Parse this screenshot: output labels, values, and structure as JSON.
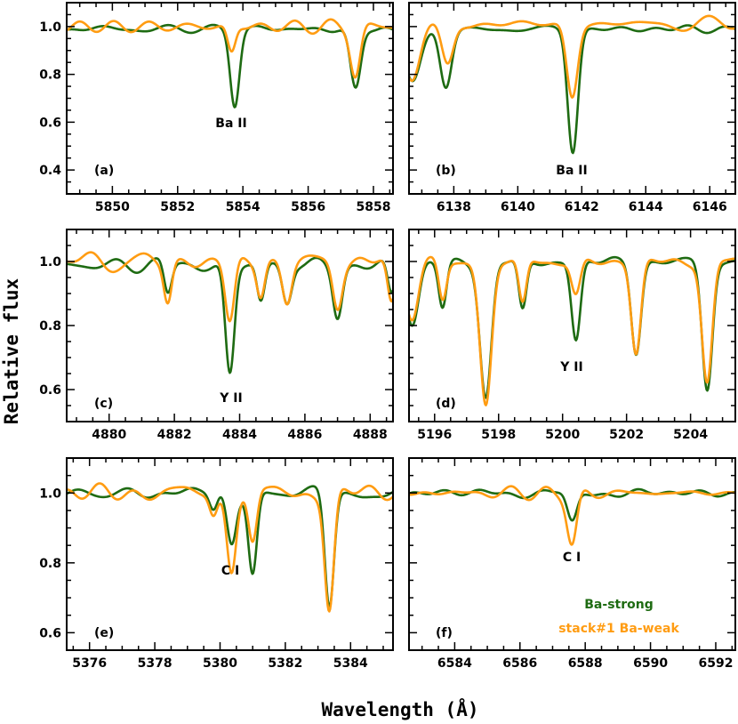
{
  "figure": {
    "ylabel": "Relative flux",
    "xlabel": "Wavelength (Å)",
    "legend": [
      {
        "label": "Ba-strong",
        "color": "#1e6b12"
      },
      {
        "label": "stack#1 Ba-weak",
        "color": "#ff9c12"
      }
    ]
  },
  "chart_data": [
    {
      "type": "line",
      "panel": "(a)",
      "line_label": "Ba II",
      "xlim": [
        5848.6,
        5858.6
      ],
      "ylim": [
        0.3,
        1.1
      ],
      "xticks": [
        "5850",
        "5852",
        "5854",
        "5856",
        "5858"
      ],
      "xtick_values": [
        5850,
        5852,
        5854,
        5856,
        5858
      ],
      "yticks": [
        "0.4",
        "0.6",
        "0.8",
        "1.0"
      ],
      "ytick_values": [
        0.4,
        0.6,
        0.8,
        1.0
      ],
      "series": [
        {
          "name": "Ba-strong",
          "color": "#1e6b12",
          "baseline": 0.99,
          "wiggle": 0.02,
          "seed": 11,
          "lines": [
            {
              "center": 5853.75,
              "depth": 0.31,
              "width": 0.14
            },
            {
              "center": 5857.45,
              "depth": 0.26,
              "width": 0.16
            }
          ]
        },
        {
          "name": "stack#1 Ba-weak",
          "color": "#ff9c12",
          "baseline": 1.0,
          "wiggle": 0.03,
          "seed": 23,
          "lines": [
            {
              "center": 5853.65,
              "depth": 0.11,
              "width": 0.12
            },
            {
              "center": 5857.45,
              "depth": 0.2,
              "width": 0.15
            }
          ]
        }
      ]
    },
    {
      "type": "line",
      "panel": "(b)",
      "line_label": "Ba II",
      "xlim": [
        6136.6,
        6146.8
      ],
      "ylim": [
        0.3,
        1.1
      ],
      "xticks": [
        "6138",
        "6140",
        "6142",
        "6144",
        "6146"
      ],
      "xtick_values": [
        6138,
        6140,
        6142,
        6144,
        6146
      ],
      "yticks": [],
      "ytick_values": [
        0.4,
        0.6,
        0.8,
        1.0
      ],
      "series": [
        {
          "name": "Ba-strong",
          "color": "#1e6b12",
          "baseline": 0.99,
          "wiggle": 0.02,
          "seed": 5,
          "lines": [
            {
              "center": 6141.72,
              "depth": 0.51,
              "width": 0.16
            },
            {
              "center": 6137.75,
              "depth": 0.25,
              "width": 0.18
            },
            {
              "center": 6136.7,
              "depth": 0.22,
              "width": 0.25
            }
          ]
        },
        {
          "name": "stack#1 Ba-weak",
          "color": "#ff9c12",
          "baseline": 1.01,
          "wiggle": 0.03,
          "seed": 31,
          "lines": [
            {
              "center": 6141.7,
              "depth": 0.3,
              "width": 0.17
            },
            {
              "center": 6137.8,
              "depth": 0.17,
              "width": 0.18
            },
            {
              "center": 6136.7,
              "depth": 0.24,
              "width": 0.25
            }
          ]
        }
      ]
    },
    {
      "type": "line",
      "panel": "(c)",
      "line_label": "Y II",
      "xlim": [
        4878.7,
        4888.7
      ],
      "ylim": [
        0.5,
        1.1
      ],
      "xticks": [
        "4880",
        "4882",
        "4884",
        "4886",
        "4888"
      ],
      "xtick_values": [
        4880,
        4882,
        4884,
        4886,
        4888
      ],
      "yticks": [
        "0.6",
        "0.8",
        "1.0"
      ],
      "ytick_values": [
        0.6,
        0.8,
        1.0
      ],
      "series": [
        {
          "name": "Ba-strong",
          "color": "#1e6b12",
          "baseline": 0.99,
          "wiggle": 0.025,
          "seed": 7,
          "lines": [
            {
              "center": 4883.7,
              "depth": 0.34,
              "width": 0.14
            },
            {
              "center": 4881.8,
              "depth": 0.1,
              "width": 0.12
            },
            {
              "center": 4884.65,
              "depth": 0.12,
              "width": 0.12
            },
            {
              "center": 4885.45,
              "depth": 0.12,
              "width": 0.14
            },
            {
              "center": 4887.0,
              "depth": 0.15,
              "width": 0.14
            },
            {
              "center": 4888.65,
              "depth": 0.11,
              "width": 0.12
            }
          ]
        },
        {
          "name": "stack#1 Ba-weak",
          "color": "#ff9c12",
          "baseline": 1.0,
          "wiggle": 0.03,
          "seed": 19,
          "lines": [
            {
              "center": 4883.7,
              "depth": 0.19,
              "width": 0.14
            },
            {
              "center": 4881.8,
              "depth": 0.12,
              "width": 0.12
            },
            {
              "center": 4884.65,
              "depth": 0.1,
              "width": 0.12
            },
            {
              "center": 4885.45,
              "depth": 0.12,
              "width": 0.14
            },
            {
              "center": 4887.0,
              "depth": 0.13,
              "width": 0.14
            },
            {
              "center": 4888.65,
              "depth": 0.14,
              "width": 0.12
            }
          ]
        }
      ]
    },
    {
      "type": "line",
      "panel": "(d)",
      "line_label": "Y II",
      "xlim": [
        5195.2,
        5205.4
      ],
      "ylim": [
        0.5,
        1.1
      ],
      "xticks": [
        "5196",
        "5198",
        "5200",
        "5202",
        "5204"
      ],
      "xtick_values": [
        5196,
        5198,
        5200,
        5202,
        5204
      ],
      "yticks": [],
      "ytick_values": [
        0.6,
        0.8,
        1.0
      ],
      "series": [
        {
          "name": "Ba-strong",
          "color": "#1e6b12",
          "baseline": 1.0,
          "wiggle": 0.015,
          "seed": 3,
          "lines": [
            {
              "center": 5197.6,
              "depth": 0.43,
              "width": 0.18
            },
            {
              "center": 5198.75,
              "depth": 0.16,
              "width": 0.12
            },
            {
              "center": 5200.42,
              "depth": 0.25,
              "width": 0.14
            },
            {
              "center": 5202.3,
              "depth": 0.28,
              "width": 0.15
            },
            {
              "center": 5204.52,
              "depth": 0.4,
              "width": 0.16
            },
            {
              "center": 5195.3,
              "depth": 0.2,
              "width": 0.2
            },
            {
              "center": 5196.25,
              "depth": 0.14,
              "width": 0.12
            }
          ]
        },
        {
          "name": "stack#1 Ba-weak",
          "color": "#ff9c12",
          "baseline": 1.0,
          "wiggle": 0.015,
          "seed": 29,
          "lines": [
            {
              "center": 5197.6,
              "depth": 0.45,
              "width": 0.18
            },
            {
              "center": 5198.75,
              "depth": 0.14,
              "width": 0.12
            },
            {
              "center": 5200.42,
              "depth": 0.11,
              "width": 0.14
            },
            {
              "center": 5202.3,
              "depth": 0.29,
              "width": 0.15
            },
            {
              "center": 5204.52,
              "depth": 0.38,
              "width": 0.16
            },
            {
              "center": 5195.3,
              "depth": 0.18,
              "width": 0.2
            },
            {
              "center": 5196.25,
              "depth": 0.12,
              "width": 0.12
            }
          ]
        }
      ]
    },
    {
      "type": "line",
      "panel": "(e)",
      "line_label": "C I",
      "xlim": [
        5375.3,
        5385.3
      ],
      "ylim": [
        0.55,
        1.1
      ],
      "xticks": [
        "5376",
        "5378",
        "5380",
        "5382",
        "5384"
      ],
      "xtick_values": [
        5376,
        5378,
        5380,
        5382,
        5384
      ],
      "yticks": [
        "0.6",
        "0.8",
        "1.0"
      ],
      "ytick_values": [
        0.6,
        0.8,
        1.0
      ],
      "series": [
        {
          "name": "Ba-strong",
          "color": "#1e6b12",
          "baseline": 1.0,
          "wiggle": 0.02,
          "seed": 13,
          "lines": [
            {
              "center": 5380.35,
              "depth": 0.14,
              "width": 0.14
            },
            {
              "center": 5381.0,
              "depth": 0.23,
              "width": 0.13
            },
            {
              "center": 5383.35,
              "depth": 0.33,
              "width": 0.14
            },
            {
              "center": 5379.8,
              "depth": 0.05,
              "width": 0.12
            }
          ]
        },
        {
          "name": "stack#1 Ba-weak",
          "color": "#ff9c12",
          "baseline": 1.0,
          "wiggle": 0.025,
          "seed": 41,
          "lines": [
            {
              "center": 5380.35,
              "depth": 0.21,
              "width": 0.14
            },
            {
              "center": 5381.0,
              "depth": 0.15,
              "width": 0.13
            },
            {
              "center": 5383.35,
              "depth": 0.33,
              "width": 0.14
            },
            {
              "center": 5379.8,
              "depth": 0.06,
              "width": 0.12
            }
          ]
        }
      ]
    },
    {
      "type": "line",
      "panel": "(f)",
      "line_label": "C I",
      "xlim": [
        6582.6,
        6592.6
      ],
      "ylim": [
        0.55,
        1.1
      ],
      "xticks": [
        "6584",
        "6586",
        "6588",
        "6590",
        "6592"
      ],
      "xtick_values": [
        6584,
        6586,
        6588,
        6590,
        6592
      ],
      "yticks": [],
      "ytick_values": [
        0.6,
        0.8,
        1.0
      ],
      "series": [
        {
          "name": "Ba-strong",
          "color": "#1e6b12",
          "baseline": 1.0,
          "wiggle": 0.012,
          "seed": 17,
          "lines": [
            {
              "center": 6587.6,
              "depth": 0.09,
              "width": 0.15
            }
          ]
        },
        {
          "name": "stack#1 Ba-weak",
          "color": "#ff9c12",
          "baseline": 1.0,
          "wiggle": 0.02,
          "seed": 37,
          "lines": [
            {
              "center": 6587.6,
              "depth": 0.15,
              "width": 0.15
            }
          ]
        }
      ]
    }
  ]
}
